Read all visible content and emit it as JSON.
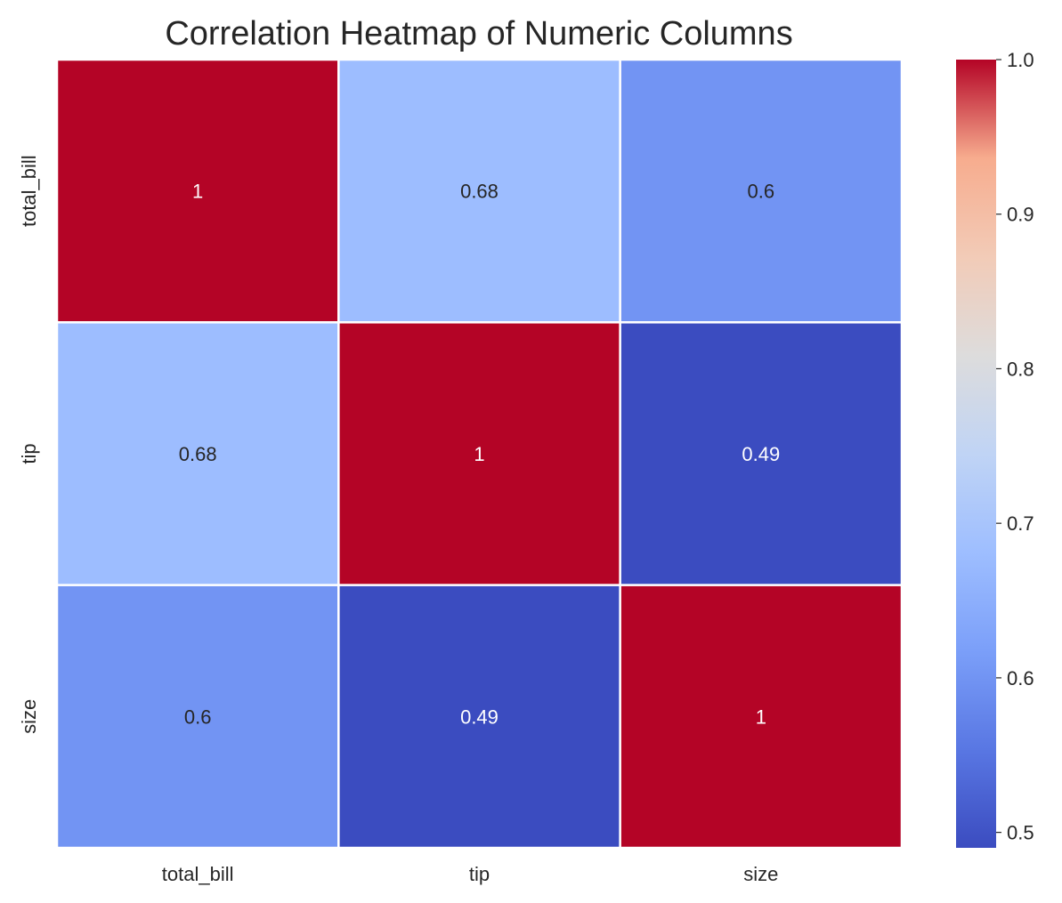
{
  "chart_data": {
    "type": "heatmap",
    "title": "Correlation Heatmap of Numeric Columns",
    "x_labels": [
      "total_bill",
      "tip",
      "size"
    ],
    "y_labels": [
      "total_bill",
      "tip",
      "size"
    ],
    "values": [
      [
        1.0,
        0.68,
        0.6
      ],
      [
        0.68,
        1.0,
        0.49
      ],
      [
        0.6,
        0.49,
        1.0
      ]
    ],
    "annotations": [
      [
        "1",
        "0.68",
        "0.6"
      ],
      [
        "0.68",
        "1",
        "0.49"
      ],
      [
        "0.6",
        "0.49",
        "1"
      ]
    ],
    "colormap": "coolwarm",
    "colorbar": {
      "range": [
        0.49,
        1.0
      ],
      "ticks": [
        0.5,
        0.6,
        0.7,
        0.8,
        0.9,
        1.0
      ],
      "tick_labels": [
        "0.5",
        "0.6",
        "0.7",
        "0.8",
        "0.9",
        "1.0"
      ]
    },
    "colors": {
      "cell_border": "#ffffff",
      "text_dark": "#262626",
      "text_light": "#ffffff"
    }
  }
}
